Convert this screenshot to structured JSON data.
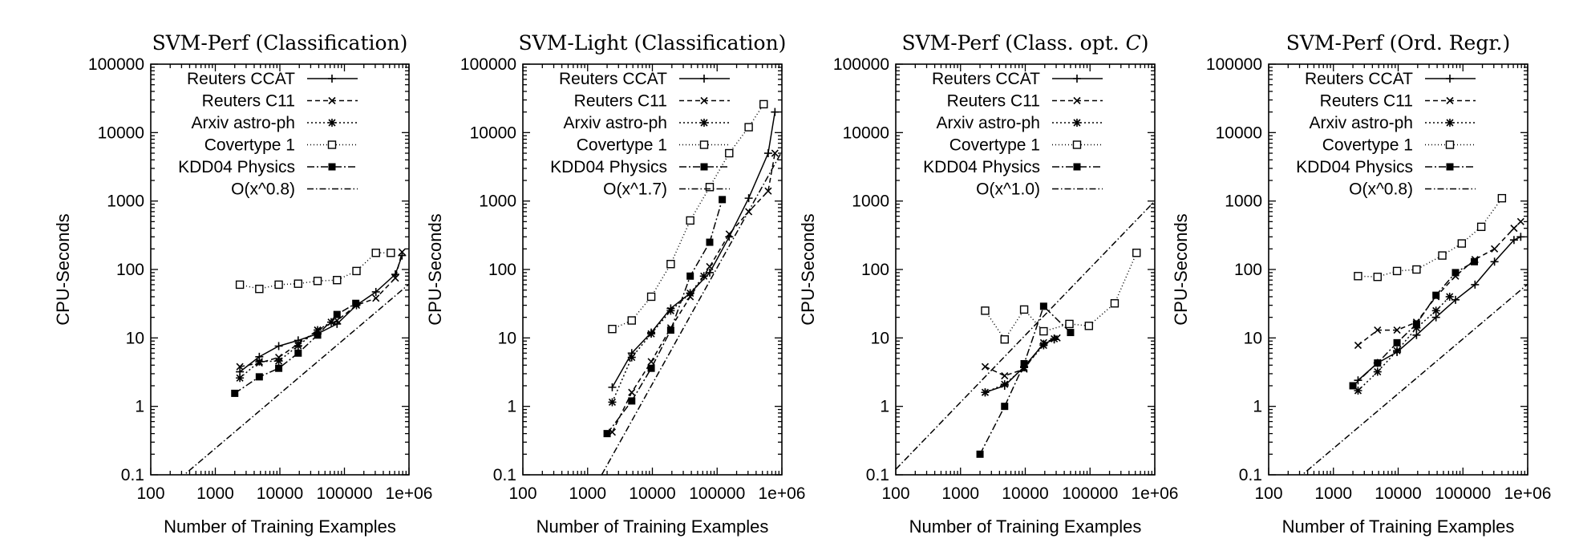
{
  "chart_data": [
    {
      "type": "line",
      "title": "SVM-Perf (Classification)",
      "title_italic": "",
      "xlabel": "Number of Training Examples",
      "ylabel": "CPU-Seconds",
      "xscale": "log",
      "yscale": "log",
      "xlim": [
        100,
        1000000
      ],
      "ylim": [
        0.1,
        100000
      ],
      "xticks": [
        100,
        1000,
        10000,
        100000,
        1000000
      ],
      "xtick_labels": [
        "100",
        "1000",
        "10000",
        "100000",
        "1e+06"
      ],
      "yticks": [
        0.1,
        1,
        10,
        100,
        1000,
        10000,
        100000
      ],
      "ytick_labels": [
        "0.1",
        "1",
        "10",
        "100",
        "1000",
        "10000",
        "100000"
      ],
      "legend_position": "top-left",
      "series": [
        {
          "name": "Reuters CCAT",
          "x": [
            2400,
            4800,
            9600,
            19200,
            38400,
            76800,
            153600,
            307200,
            614400,
            781265
          ],
          "y": [
            3.2,
            5.3,
            7.6,
            9.2,
            11.5,
            16,
            30,
            47,
            85,
            160
          ]
        },
        {
          "name": "Reuters C11",
          "x": [
            2400,
            4800,
            9600,
            19200,
            38400,
            76800,
            153600,
            307200,
            614400,
            781265
          ],
          "y": [
            3.8,
            4.3,
            5.2,
            8.2,
            13,
            18,
            30,
            38,
            75,
            180
          ]
        },
        {
          "name": "Arxiv astro-ph",
          "x": [
            2400,
            4800,
            9600,
            19200,
            38400,
            62369
          ],
          "y": [
            2.6,
            4.5,
            4.6,
            7.7,
            13,
            17
          ]
        },
        {
          "name": "Covertype 1",
          "x": [
            2400,
            4800,
            9600,
            19200,
            38400,
            76800,
            153600,
            307200,
            522911
          ],
          "y": [
            60,
            52,
            60,
            62,
            68,
            70,
            95,
            175,
            175
          ]
        },
        {
          "name": "KDD04 Physics",
          "x": [
            2000,
            4800,
            9600,
            19200,
            38400,
            76800,
            150000
          ],
          "y": [
            1.55,
            2.7,
            3.6,
            6,
            11,
            22,
            32
          ]
        },
        {
          "name": "O(x^0.8)",
          "x": [
            100,
            1000000
          ],
          "y": [
            0.0385,
            61
          ]
        }
      ]
    },
    {
      "type": "line",
      "title": "SVM-Light (Classification)",
      "title_italic": "",
      "xlabel": "Number of Training Examples",
      "ylabel": "CPU-Seconds",
      "xscale": "log",
      "yscale": "log",
      "xlim": [
        100,
        1000000
      ],
      "ylim": [
        0.1,
        100000
      ],
      "xticks": [
        100,
        1000,
        10000,
        100000,
        1000000
      ],
      "xtick_labels": [
        "100",
        "1000",
        "10000",
        "100000",
        "1e+06"
      ],
      "yticks": [
        0.1,
        1,
        10,
        100,
        1000,
        10000,
        100000
      ],
      "ytick_labels": [
        "0.1",
        "1",
        "10",
        "100",
        "1000",
        "10000",
        "100000"
      ],
      "legend_position": "top-left",
      "series": [
        {
          "name": "Reuters CCAT",
          "x": [
            2400,
            4800,
            9600,
            19200,
            38400,
            76800,
            153600,
            307200,
            614400,
            781265
          ],
          "y": [
            1.9,
            6,
            12,
            27,
            45,
            90,
            300,
            1100,
            5000,
            20000
          ]
        },
        {
          "name": "Reuters C11",
          "x": [
            2400,
            4800,
            9600,
            19200,
            38400,
            76800,
            153600,
            307200,
            614400,
            781265
          ],
          "y": [
            0.42,
            1.6,
            4.5,
            14,
            40,
            110,
            330,
            700,
            1400,
            5000
          ]
        },
        {
          "name": "Arxiv astro-ph",
          "x": [
            2400,
            4800,
            9600,
            19200,
            38400,
            62369
          ],
          "y": [
            1.15,
            5.2,
            11.5,
            25,
            45,
            80
          ]
        },
        {
          "name": "Covertype 1",
          "x": [
            2400,
            4800,
            9600,
            19200,
            38400,
            76800,
            153600,
            307200,
            522911
          ],
          "y": [
            13.5,
            18,
            40,
            120,
            520,
            1600,
            5000,
            12000,
            26000
          ]
        },
        {
          "name": "KDD04 Physics",
          "x": [
            2000,
            4800,
            9600,
            19200,
            38400,
            76800,
            120000
          ],
          "y": [
            0.4,
            1.2,
            3.6,
            13,
            80,
            250,
            1050
          ]
        },
        {
          "name": "O(x^1.7)",
          "x": [
            1650,
            1000000
          ],
          "y": [
            0.1,
            5300
          ]
        }
      ]
    },
    {
      "type": "line",
      "title": "SVM-Perf (Class. opt. ",
      "title_italic": "C",
      "xlabel": "Number of Training Examples",
      "ylabel": "CPU-Seconds",
      "xscale": "log",
      "yscale": "log",
      "xlim": [
        100,
        1000000
      ],
      "ylim": [
        0.1,
        100000
      ],
      "xticks": [
        100,
        1000,
        10000,
        100000,
        1000000
      ],
      "xtick_labels": [
        "100",
        "1000",
        "10000",
        "100000",
        "1e+06"
      ],
      "yticks": [
        0.1,
        1,
        10,
        100,
        1000,
        10000,
        100000
      ],
      "ytick_labels": [
        "0.1",
        "1",
        "10",
        "100",
        "1000",
        "10000",
        "100000"
      ],
      "legend_position": "top-left",
      "series": [
        {
          "name": "Reuters CCAT",
          "x": [
            2400,
            4800,
            9600,
            19200,
            28000
          ],
          "y": [
            1.6,
            2.0,
            3.8,
            8.2,
            9.5
          ]
        },
        {
          "name": "Reuters C11",
          "x": [
            2400,
            4800,
            9600,
            19200,
            31000
          ],
          "y": [
            3.8,
            2.8,
            3.5,
            8.5,
            10
          ]
        },
        {
          "name": "Arxiv astro-ph",
          "x": [
            2400,
            4800,
            9600,
            19200,
            28000
          ],
          "y": [
            1.6,
            2.1,
            3.7,
            7.8,
            9.7
          ]
        },
        {
          "name": "Covertype 1",
          "x": [
            2400,
            4800,
            9600,
            19200,
            48000,
            96000,
            240000,
            522911
          ],
          "y": [
            25,
            9.5,
            26,
            12.5,
            16,
            15,
            32,
            175
          ]
        },
        {
          "name": "KDD04 Physics",
          "x": [
            2000,
            4800,
            9600,
            19200,
            50000
          ],
          "y": [
            0.2,
            1.0,
            4.2,
            29,
            12
          ]
        },
        {
          "name": "O(x^1.0)",
          "x": [
            100,
            1000000
          ],
          "y": [
            0.12,
            1000
          ]
        }
      ]
    },
    {
      "type": "line",
      "title": "SVM-Perf (Ord. Regr.)",
      "title_italic": "",
      "xlabel": "Number of Training Examples",
      "ylabel": "CPU-Seconds",
      "xscale": "log",
      "yscale": "log",
      "xlim": [
        100,
        1000000
      ],
      "ylim": [
        0.1,
        100000
      ],
      "xticks": [
        100,
        1000,
        10000,
        100000,
        1000000
      ],
      "xtick_labels": [
        "100",
        "1000",
        "10000",
        "100000",
        "1e+06"
      ],
      "yticks": [
        0.1,
        1,
        10,
        100,
        1000,
        10000,
        100000
      ],
      "ytick_labels": [
        "0.1",
        "1",
        "10",
        "100",
        "1000",
        "10000",
        "100000"
      ],
      "legend_position": "top-left",
      "series": [
        {
          "name": "Reuters CCAT",
          "x": [
            2400,
            4800,
            9600,
            19200,
            38400,
            76800,
            153600,
            307200,
            614400,
            781265
          ],
          "y": [
            2.4,
            4.3,
            6.2,
            11,
            20,
            36,
            60,
            130,
            270,
            300
          ]
        },
        {
          "name": "Reuters C11",
          "x": [
            2400,
            4800,
            9600,
            19200,
            38400,
            76800,
            153600,
            307200,
            614400,
            781265
          ],
          "y": [
            7.8,
            13,
            13,
            17,
            40,
            80,
            140,
            200,
            400,
            500
          ]
        },
        {
          "name": "Arxiv astro-ph",
          "x": [
            2400,
            4800,
            9600,
            19200,
            38400,
            62369
          ],
          "y": [
            1.7,
            3.2,
            6.5,
            14,
            25,
            40
          ]
        },
        {
          "name": "Covertype 1",
          "x": [
            2400,
            4800,
            9600,
            19200,
            48000,
            96000,
            192000,
            400000
          ],
          "y": [
            80,
            78,
            95,
            100,
            160,
            240,
            420,
            1100
          ]
        },
        {
          "name": "KDD04 Physics",
          "x": [
            2000,
            4800,
            9600,
            19200,
            38400,
            76800,
            150000
          ],
          "y": [
            2.0,
            4.3,
            8.5,
            16,
            42,
            90,
            130
          ]
        },
        {
          "name": "O(x^0.8)",
          "x": [
            100,
            1000000
          ],
          "y": [
            0.0385,
            61
          ]
        }
      ]
    }
  ]
}
